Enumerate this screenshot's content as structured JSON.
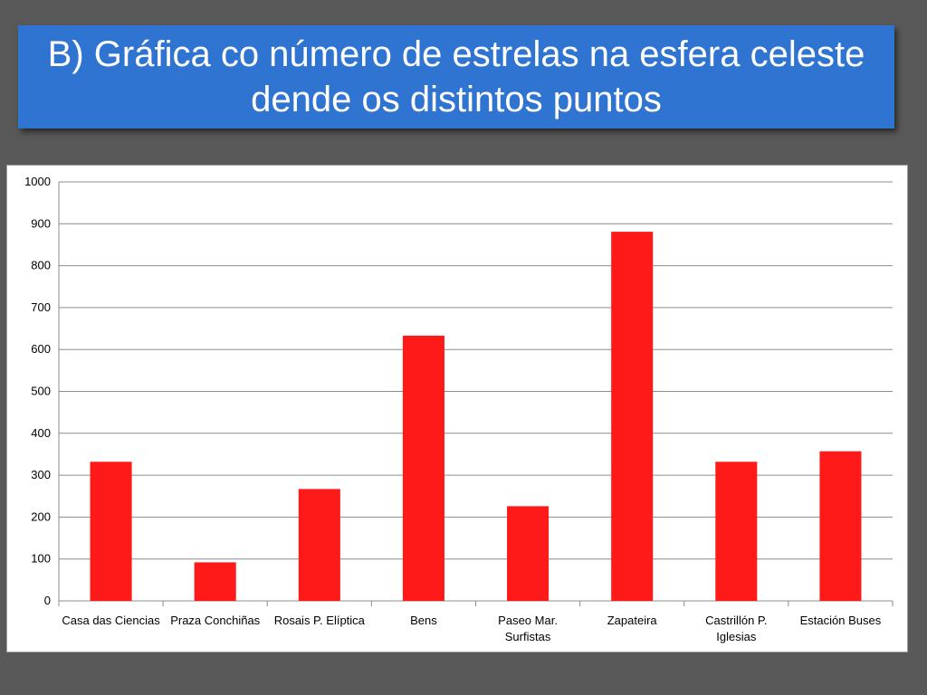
{
  "title": "B) Gráfica co número de estrelas na esfera celeste dende os distintos puntos",
  "colors": {
    "background": "#595959",
    "title_bg": "#2f74d0",
    "title_text": "#ffffff",
    "bar": "#ff1a1a",
    "grid": "#8c8c8c"
  },
  "chart_data": {
    "type": "bar",
    "categories": [
      [
        "Casa das Ciencias"
      ],
      [
        "Praza Conchiñas"
      ],
      [
        "Rosais P. Elíptica"
      ],
      [
        "Bens"
      ],
      [
        "Paseo Mar.",
        "Surfistas"
      ],
      [
        "Zapateira"
      ],
      [
        "Castrillón P.",
        "Iglesias"
      ],
      [
        "Estación Buses"
      ]
    ],
    "values": [
      332,
      92,
      267,
      633,
      226,
      881,
      332,
      357
    ],
    "ylim": [
      0,
      1000
    ],
    "yticks": [
      0,
      100,
      200,
      300,
      400,
      500,
      600,
      700,
      800,
      900,
      1000
    ],
    "grid": true,
    "legend": false
  }
}
